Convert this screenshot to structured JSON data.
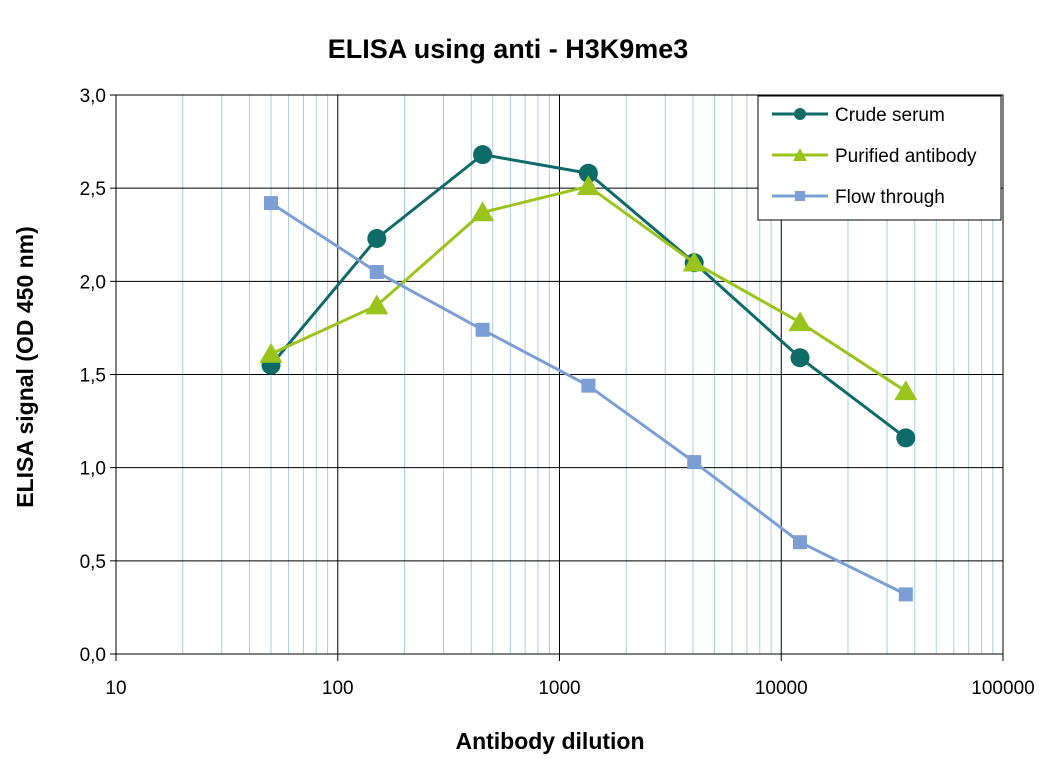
{
  "chart_data": {
    "type": "line",
    "title": "ELISA using anti - H3K9me3",
    "xlabel": "Antibody dilution",
    "ylabel": "ELISA signal (OD 450 nm)",
    "x_scale": "log",
    "xlim": [
      10,
      100000
    ],
    "ylim": [
      0,
      3
    ],
    "x_tick_labels": [
      "10",
      "100",
      "1000",
      "10000",
      "100000"
    ],
    "y_tick_labels": [
      "0,0",
      "0,5",
      "1,0",
      "1,5",
      "2,0",
      "2,5",
      "3,0"
    ],
    "grid": true,
    "legend_position": "top-right",
    "x": [
      50,
      150,
      450,
      1350,
      4050,
      12150,
      36450
    ],
    "series": [
      {
        "name": "Crude serum",
        "color": "#0e6b68",
        "marker": "circle",
        "values": [
          1.55,
          2.23,
          2.68,
          2.58,
          2.1,
          1.59,
          1.16
        ]
      },
      {
        "name": "Purified antibody",
        "color": "#9ac31c",
        "marker": "triangle",
        "values": [
          1.61,
          1.87,
          2.37,
          2.51,
          2.1,
          1.78,
          1.41
        ]
      },
      {
        "name": "Flow  through",
        "color": "#7b9ed4",
        "marker": "square",
        "values": [
          2.42,
          2.05,
          1.74,
          1.44,
          1.03,
          0.6,
          0.32
        ]
      }
    ]
  }
}
